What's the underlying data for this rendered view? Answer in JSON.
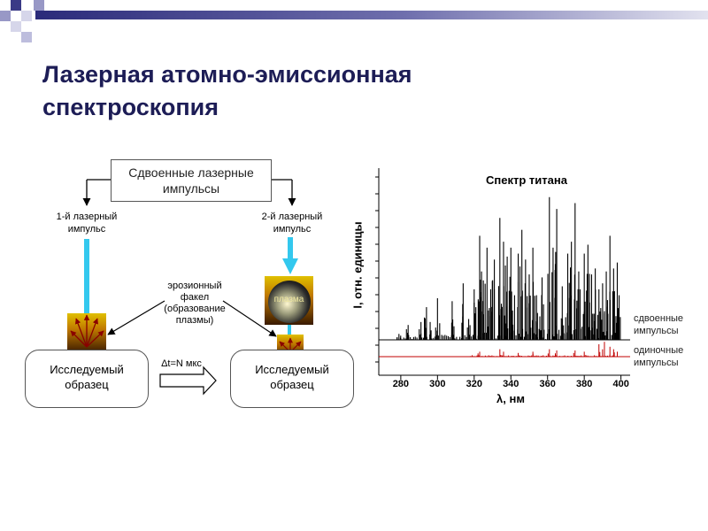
{
  "slide": {
    "title_line1": "Лазерная атомно-эмиссионная",
    "title_line2": "спектроскопия"
  },
  "scheme": {
    "double_pulse_line1": "Сдвоенные лазерные",
    "double_pulse_line2": "импульсы",
    "pulse1_line1": "1-й лазерный",
    "pulse1_line2": "импульс",
    "pulse2_line1": "2-й лазерный",
    "pulse2_line2": "импульс",
    "plasma_label": "плазма",
    "torch_line1": "эрозионный",
    "torch_line2": "факел",
    "torch_line3": "(образование",
    "torch_line4": "плазмы)",
    "sample1_line1": "Исследуемый",
    "sample1_line2": "образец",
    "sample2_line1": "Исследуемый",
    "sample2_line2": "образец",
    "delay_label": "Δt=N мкс"
  },
  "chart_data": {
    "type": "line",
    "title": "Спектр титана",
    "xlabel": "λ, нм",
    "ylabel": "I, отн. единицы",
    "xlim": [
      268,
      405
    ],
    "x_ticks": [
      280,
      300,
      320,
      340,
      360,
      380,
      400
    ],
    "grid": false,
    "series": [
      {
        "name_line1": "сдвоенные",
        "name_line2": "импульсы",
        "color": "#000000",
        "baseline": 0.0,
        "peaks": [
          [
            279,
            0.04
          ],
          [
            284,
            0.1
          ],
          [
            291,
            0.12
          ],
          [
            294,
            0.22
          ],
          [
            296,
            0.12
          ],
          [
            300,
            0.28
          ],
          [
            308,
            0.26
          ],
          [
            314,
            0.38
          ],
          [
            317,
            0.14
          ],
          [
            320,
            0.34
          ],
          [
            323,
            0.7
          ],
          [
            324,
            0.46
          ],
          [
            325,
            0.4
          ],
          [
            327,
            0.62
          ],
          [
            329,
            0.34
          ],
          [
            331,
            0.54
          ],
          [
            334,
            0.82
          ],
          [
            336,
            0.66
          ],
          [
            337,
            0.5
          ],
          [
            338,
            0.56
          ],
          [
            340,
            0.62
          ],
          [
            342,
            0.3
          ],
          [
            344,
            0.58
          ],
          [
            346,
            0.74
          ],
          [
            348,
            0.54
          ],
          [
            350,
            0.44
          ],
          [
            352,
            0.62
          ],
          [
            354,
            0.3
          ],
          [
            357,
            0.42
          ],
          [
            361,
            0.96
          ],
          [
            363,
            0.62
          ],
          [
            365,
            0.88
          ],
          [
            368,
            0.36
          ],
          [
            371,
            0.58
          ],
          [
            373,
            0.66
          ],
          [
            375,
            0.92
          ],
          [
            377,
            0.46
          ],
          [
            380,
            0.58
          ],
          [
            382,
            0.64
          ],
          [
            384,
            0.44
          ],
          [
            386,
            0.48
          ],
          [
            388,
            0.34
          ],
          [
            390,
            0.38
          ],
          [
            392,
            0.46
          ],
          [
            394,
            0.7
          ],
          [
            396,
            0.48
          ],
          [
            398,
            0.52
          ],
          [
            399,
            0.3
          ]
        ]
      },
      {
        "name_line1": "одиночные",
        "name_line2": "импульсы",
        "color": "#c00000",
        "baseline": 0.0,
        "peaks": [
          [
            323,
            0.04
          ],
          [
            334,
            0.06
          ],
          [
            336,
            0.04
          ],
          [
            344,
            0.03
          ],
          [
            352,
            0.04
          ],
          [
            361,
            0.06
          ],
          [
            365,
            0.05
          ],
          [
            375,
            0.05
          ],
          [
            380,
            0.04
          ],
          [
            388,
            0.1
          ],
          [
            391,
            0.12
          ],
          [
            394,
            0.08
          ],
          [
            396,
            0.06
          ],
          [
            398,
            0.04
          ]
        ]
      }
    ]
  }
}
